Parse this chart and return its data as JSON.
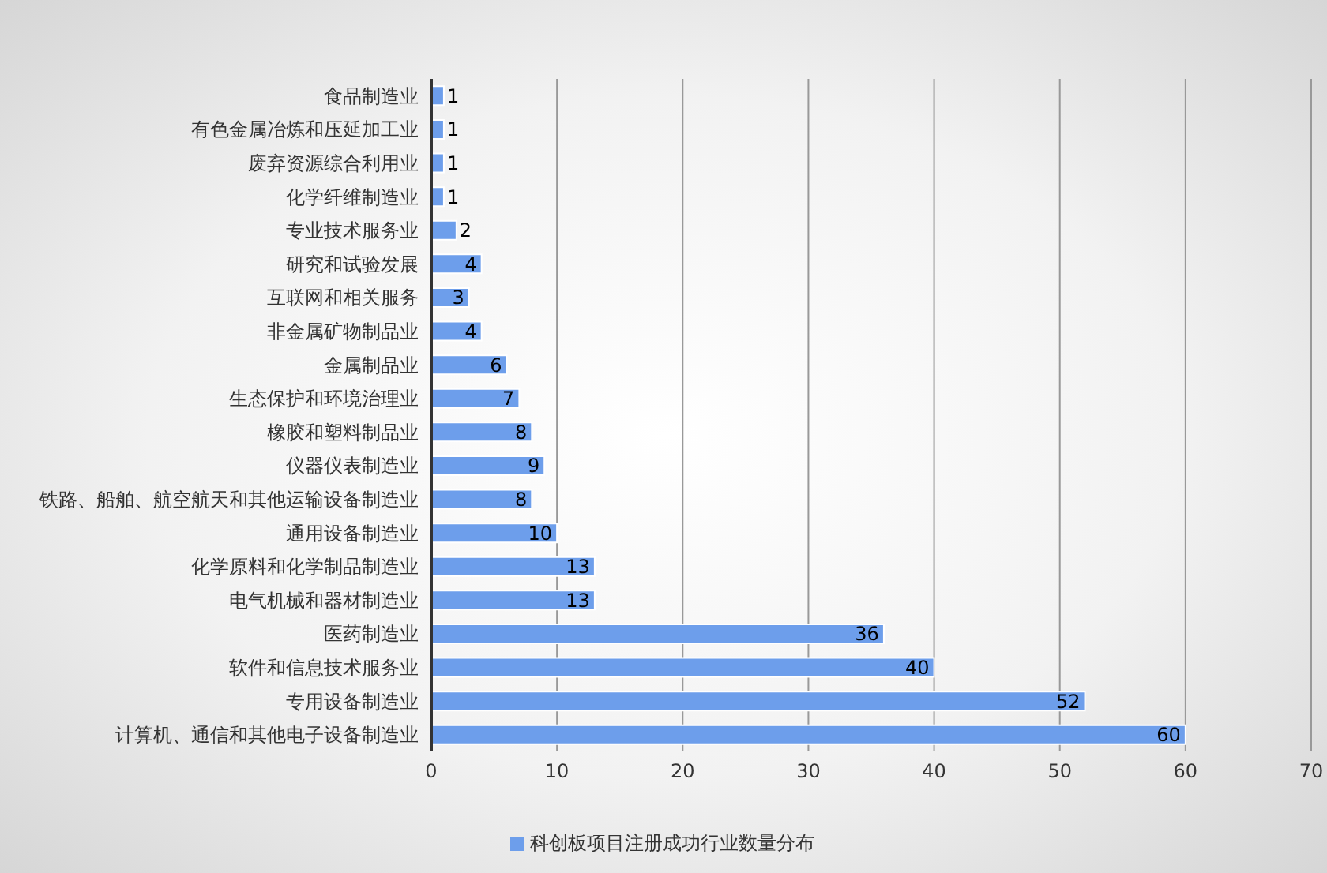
{
  "chart_data": {
    "type": "bar",
    "orientation": "horizontal",
    "categories": [
      "食品制造业",
      "有色金属冶炼和压延加工业",
      "废弃资源综合利用业",
      "化学纤维制造业",
      "专业技术服务业",
      "研究和试验发展",
      "互联网和相关服务",
      "非金属矿物制品业",
      "金属制品业",
      "生态保护和环境治理业",
      "橡胶和塑料制品业",
      "仪器仪表制造业",
      "铁路、船舶、航空航天和其他运输设备制造业",
      "通用设备制造业",
      "化学原料和化学制品制造业",
      "电气机械和器材制造业",
      "医药制造业",
      "软件和信息技术服务业",
      "专用设备制造业",
      "计算机、通信和其他电子设备制造业"
    ],
    "series": [
      {
        "name": "科创板项目注册成功行业数量分布",
        "color": "#6d9eeb",
        "values": [
          1,
          1,
          1,
          1,
          2,
          4,
          3,
          4,
          6,
          7,
          8,
          9,
          8,
          10,
          13,
          13,
          36,
          40,
          52,
          60
        ]
      }
    ],
    "xlim": [
      0,
      70
    ],
    "xticks": [
      0,
      10,
      20,
      30,
      40,
      50,
      60,
      70
    ],
    "grid": "x",
    "legend": "bottom",
    "data_labels": true
  }
}
